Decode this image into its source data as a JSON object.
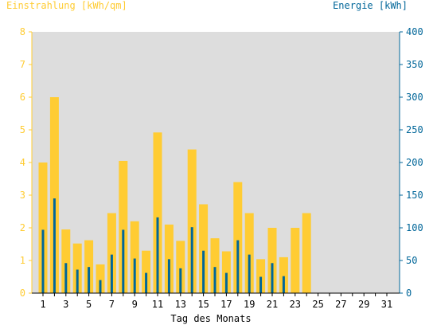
{
  "chart_data": {
    "type": "bar",
    "left_axis_title": "Einstrahlung [kWh/qm]",
    "right_axis_title": "Energie [kWh]",
    "xlabel": "Tag des Monats",
    "ylim_left": [
      0,
      8
    ],
    "ylim_right": [
      0,
      400
    ],
    "left_ticks": [
      "0",
      "1",
      "2",
      "3",
      "4",
      "5",
      "6",
      "7",
      "8"
    ],
    "right_ticks": [
      "0",
      "50",
      "100",
      "150",
      "200",
      "250",
      "300",
      "350",
      "400"
    ],
    "x_tick_labels": [
      "1",
      "3",
      "5",
      "7",
      "9",
      "11",
      "13",
      "15",
      "17",
      "19",
      "21",
      "23",
      "25",
      "27",
      "29",
      "31"
    ],
    "colors": {
      "einstrahlung": "#ffcc33",
      "energie": "#006699",
      "plot_background": "#dddddd"
    },
    "days": [
      1,
      2,
      3,
      4,
      5,
      6,
      7,
      8,
      9,
      10,
      11,
      12,
      13,
      14,
      15,
      16,
      17,
      18,
      19,
      20,
      21,
      22,
      23,
      24,
      25,
      26,
      27,
      28,
      29,
      30,
      31
    ],
    "series": [
      {
        "axis": "left",
        "values": [
          4.0,
          6.0,
          1.95,
          1.52,
          1.62,
          0.88,
          2.45,
          4.05,
          2.2,
          1.3,
          4.92,
          2.1,
          1.6,
          4.4,
          2.72,
          1.68,
          1.28,
          3.4,
          2.45,
          1.04,
          2.0,
          1.1,
          2.0,
          2.45,
          0,
          0,
          0,
          0,
          0,
          0,
          0
        ]
      },
      {
        "axis": "right",
        "values": [
          97,
          145,
          46,
          36,
          40,
          20,
          59,
          97,
          53,
          31,
          116,
          52,
          38,
          101,
          65,
          40,
          31,
          81,
          59,
          25,
          46,
          26,
          0,
          0,
          0,
          0,
          0,
          0,
          0,
          0,
          0
        ]
      }
    ]
  }
}
